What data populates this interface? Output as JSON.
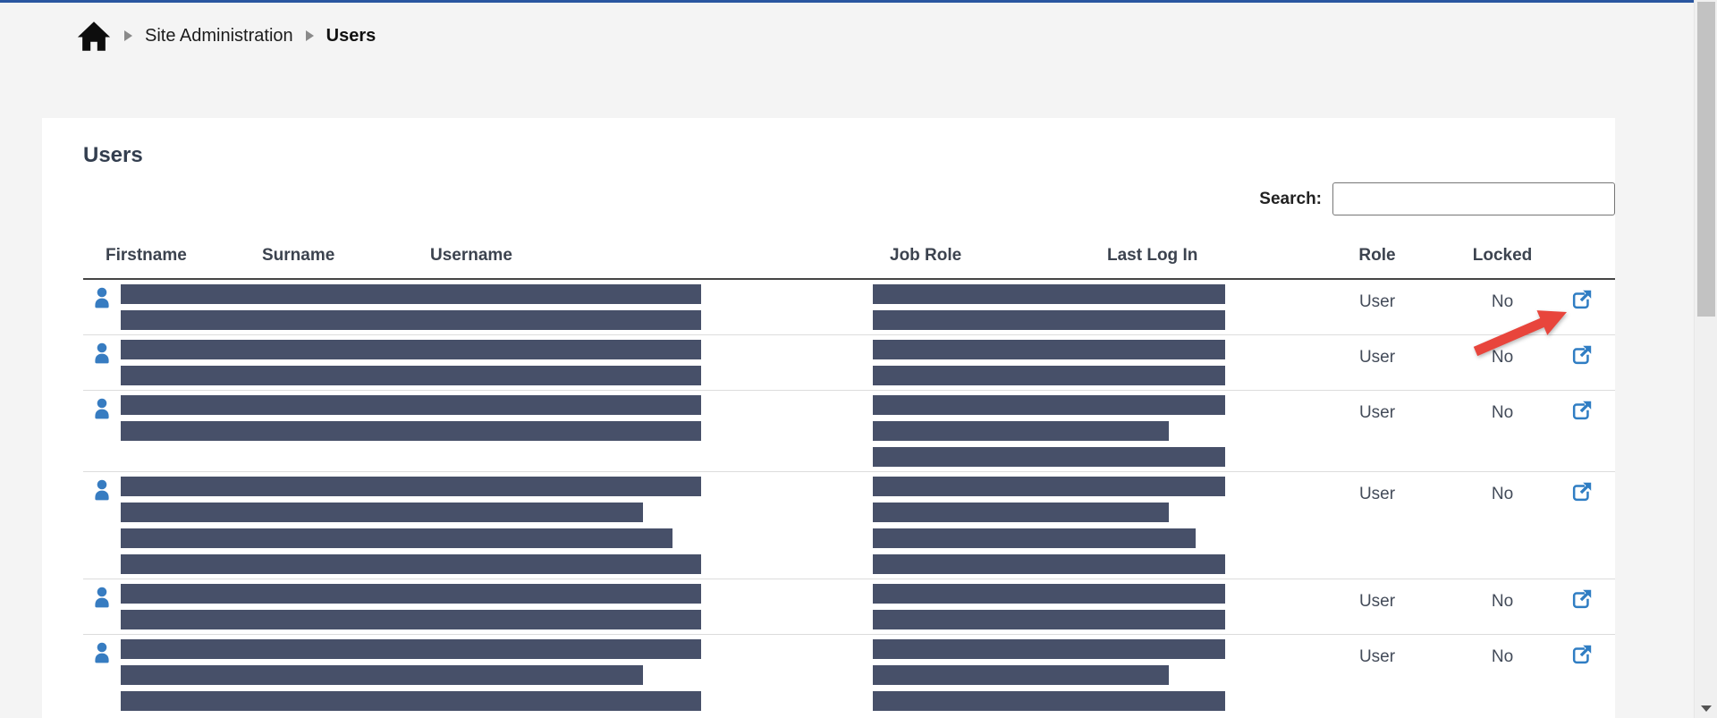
{
  "breadcrumb": {
    "items": [
      {
        "label": "Site Administration"
      },
      {
        "label": "Users"
      }
    ]
  },
  "page": {
    "title": "Users"
  },
  "search": {
    "label": "Search:",
    "value": ""
  },
  "table": {
    "headers": {
      "firstname": "Firstname",
      "surname": "Surname",
      "username": "Username",
      "job_role": "Job Role",
      "last_login": "Last Log In",
      "role": "Role",
      "locked": "Locked"
    },
    "rows": [
      {
        "role": "User",
        "locked": "No",
        "name_bars": [
          649,
          649
        ],
        "job_bars": [
          394,
          394
        ]
      },
      {
        "role": "User",
        "locked": "No",
        "name_bars": [
          649,
          649
        ],
        "job_bars": [
          394,
          394
        ]
      },
      {
        "role": "User",
        "locked": "No",
        "name_bars": [
          649,
          649
        ],
        "job_bars": [
          394,
          331,
          394
        ]
      },
      {
        "role": "User",
        "locked": "No",
        "name_bars": [
          649,
          584,
          617,
          649
        ],
        "job_bars": [
          394,
          331,
          361,
          394
        ]
      },
      {
        "role": "User",
        "locked": "No",
        "name_bars": [
          649,
          649
        ],
        "job_bars": [
          394,
          394
        ]
      },
      {
        "role": "User",
        "locked": "No",
        "name_bars": [
          649,
          584,
          649
        ],
        "job_bars": [
          394,
          331,
          394
        ]
      }
    ]
  },
  "icons": {
    "home": "home-icon",
    "separator": "chevron-right-icon",
    "row_avatar": "user-icon",
    "row_action": "external-link-icon",
    "scroll_down": "chevron-down-icon"
  },
  "colors": {
    "accent": "#2a56a0",
    "bar": "#475069",
    "icon-blue": "#377cc1",
    "link-blue": "#2f7dc3",
    "arrow-red": "#e8453c"
  }
}
